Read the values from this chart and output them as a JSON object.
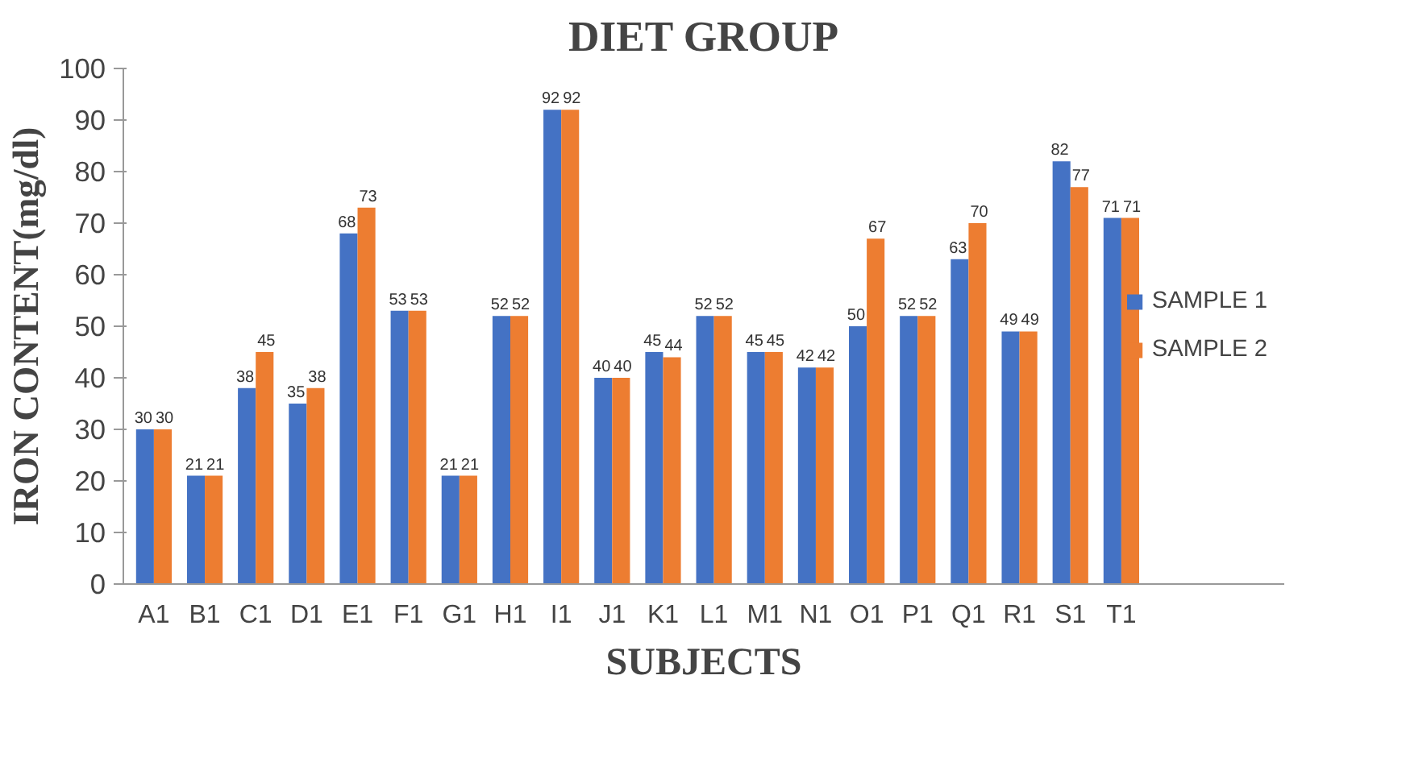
{
  "chart_data": {
    "type": "bar",
    "title": "DIET GROUP",
    "xlabel": "SUBJECTS",
    "ylabel": "IRON CONTENT(mg/dl)",
    "categories": [
      "A1",
      "B1",
      "C1",
      "D1",
      "E1",
      "F1",
      "G1",
      "H1",
      "I1",
      "J1",
      "K1",
      "L1",
      "M1",
      "N1",
      "O1",
      "P1",
      "Q1",
      "R1",
      "S1",
      "T1"
    ],
    "series": [
      {
        "name": "SAMPLE 1",
        "color": "#4472c4",
        "values": [
          30,
          21,
          38,
          35,
          68,
          53,
          21,
          52,
          92,
          40,
          45,
          52,
          45,
          42,
          50,
          52,
          63,
          49,
          82,
          71
        ]
      },
      {
        "name": "SAMPLE 2",
        "color": "#ed7d31",
        "values": [
          30,
          21,
          45,
          38,
          73,
          53,
          21,
          52,
          92,
          40,
          44,
          52,
          45,
          42,
          67,
          52,
          70,
          49,
          77,
          71
        ]
      }
    ],
    "data_labels": true,
    "ylim": [
      0,
      100
    ],
    "yticks": [
      0,
      10,
      20,
      30,
      40,
      50,
      60,
      70,
      80,
      90,
      100
    ],
    "grid": false,
    "legend": "right"
  }
}
